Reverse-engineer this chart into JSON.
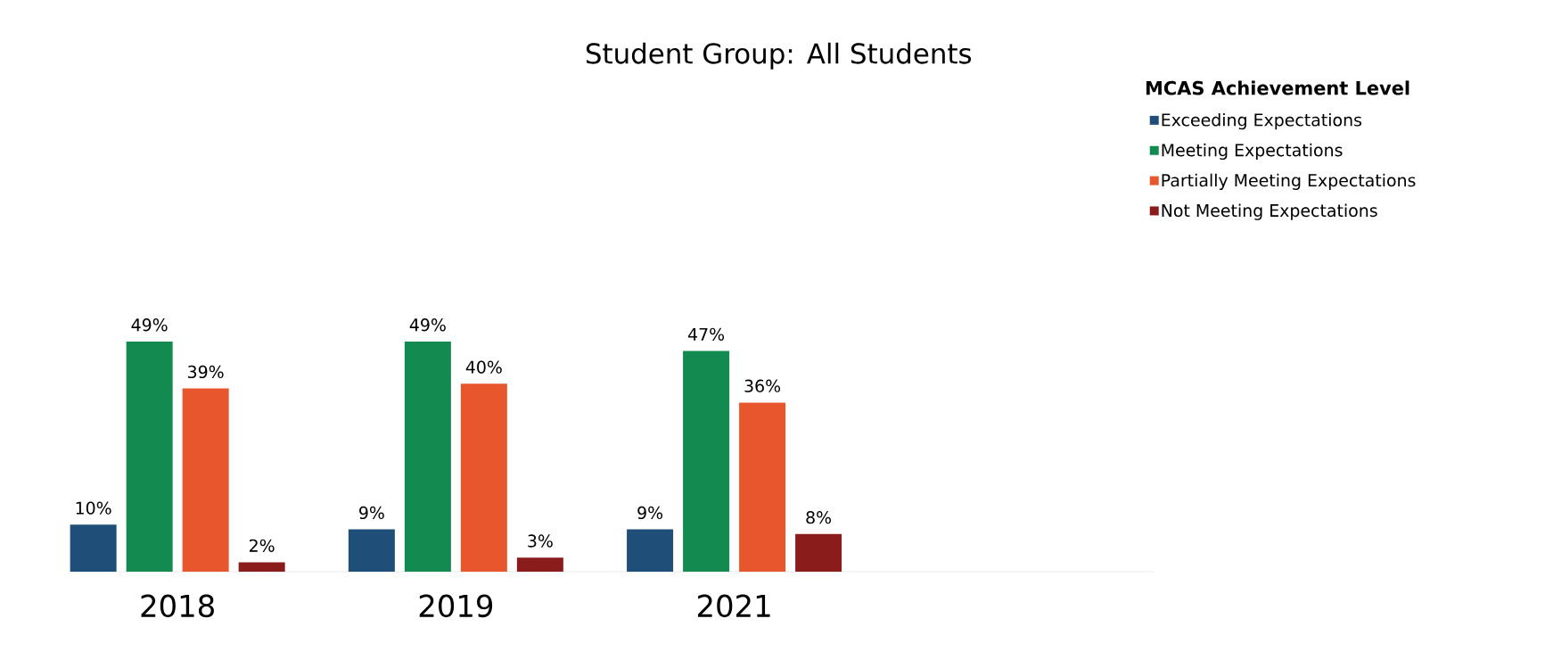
{
  "chart_data": {
    "type": "bar",
    "title": "Student Group: All Students",
    "legend_title": "MCAS Achievement Level",
    "legend": "top right",
    "categories": [
      "2018",
      "2019",
      "2021"
    ],
    "series": [
      {
        "name": "Exceeding Expectations",
        "color": "#1f4e79",
        "values": [
          10,
          9,
          9
        ],
        "value_labels": [
          "10%",
          "9%",
          "9%"
        ]
      },
      {
        "name": "Meeting Expectations",
        "color": "#138a4f",
        "values": [
          49,
          49,
          47
        ],
        "value_labels": [
          "49%",
          "49%",
          "47%"
        ]
      },
      {
        "name": "Partially Meeting Expectations",
        "color": "#e8562e",
        "values": [
          39,
          40,
          36
        ],
        "value_labels": [
          "39%",
          "40%",
          "36%"
        ]
      },
      {
        "name": "Not Meeting Expectations",
        "color": "#8b1c1c",
        "values": [
          2,
          3,
          8
        ],
        "value_labels": [
          "2%",
          "3%",
          "8%"
        ]
      }
    ]
  }
}
